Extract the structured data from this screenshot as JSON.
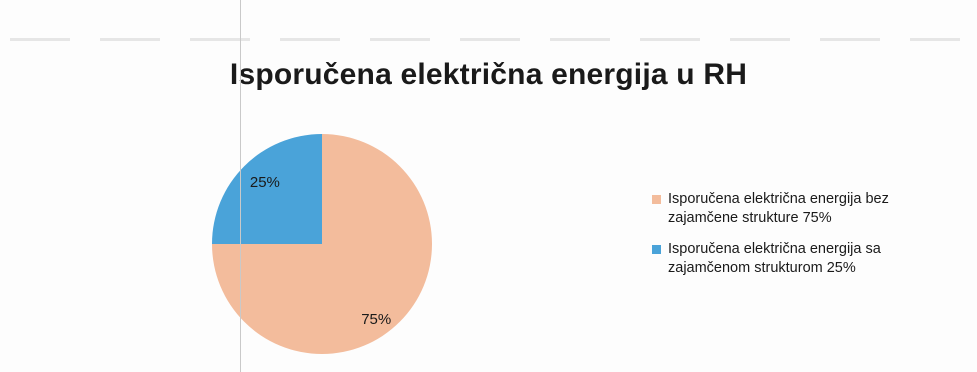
{
  "chart_data": {
    "type": "pie",
    "title": "Isporučena električna energija u RH",
    "slices": [
      {
        "label": "Isporučena električna energija bez zajamčene strukture 75%",
        "value": 75,
        "data_label": "75%",
        "color": "#f3bc9c"
      },
      {
        "label": "Isporučena električna energija sa zajamčenom strukturom 25%",
        "value": 25,
        "data_label": "25%",
        "color": "#4aa3d9"
      }
    ],
    "legend_position": "right"
  }
}
